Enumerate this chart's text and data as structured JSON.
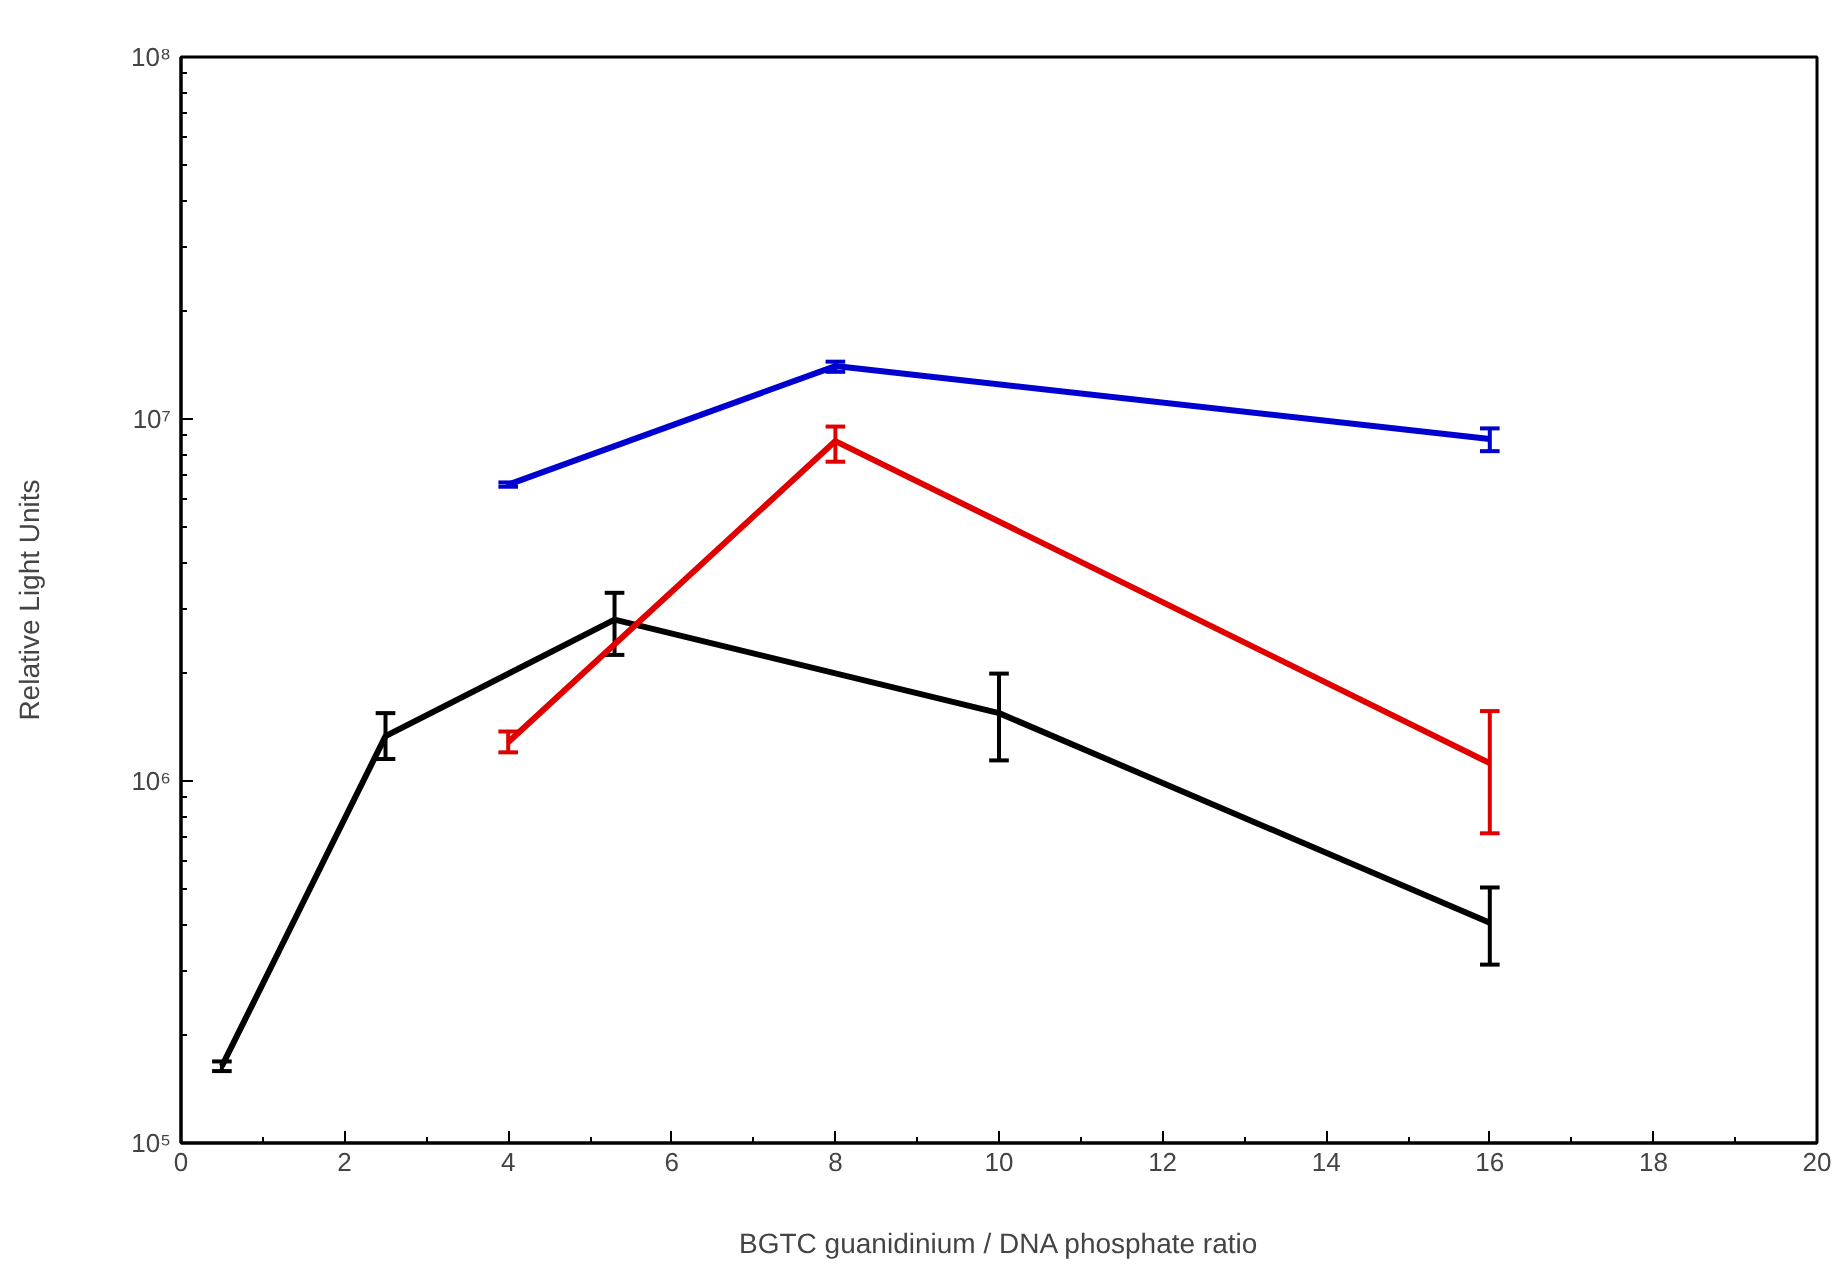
{
  "chart_data": {
    "type": "line",
    "xlabel": "BGTC guanidinium / DNA phosphate ratio",
    "ylabel": "Relative Light Units",
    "log": "y",
    "xlim": [
      0,
      20
    ],
    "xticks": [
      0,
      2,
      4,
      6,
      8,
      10,
      12,
      14,
      16,
      18,
      20
    ],
    "ylim": [
      100000,
      100000000
    ],
    "yticks": [
      {
        "value": 100000,
        "label": "10⁵"
      },
      {
        "value": 1000000,
        "label": "10⁶"
      },
      {
        "value": 10000000,
        "label": "10⁷"
      },
      {
        "value": 100000000,
        "label": "10⁸"
      }
    ],
    "series": [
      {
        "color": "#000000",
        "x": [
          0.5,
          2.5,
          5.3,
          10,
          16
        ],
        "values": [
          163000,
          1330000,
          2790000,
          1540000,
          406000
        ],
        "errors": [
          [
            158000,
            168000
          ],
          [
            1150000,
            1540000
          ],
          [
            2230000,
            3310000
          ],
          [
            1140000,
            1980000
          ],
          [
            311000,
            508000
          ]
        ]
      },
      {
        "color": "#e00000",
        "x": [
          4,
          8,
          16
        ],
        "values": [
          1280000,
          8690000,
          1120000
        ],
        "errors": [
          [
            1200000,
            1370000
          ],
          [
            7620000,
            9530000
          ],
          [
            717000,
            1560000
          ]
        ]
      },
      {
        "color": "#0000d0",
        "x": [
          4,
          8,
          16
        ],
        "values": [
          6590000,
          14000000,
          8810000
        ],
        "errors": [
          [
            6500000,
            6680000
          ],
          [
            13500000,
            14400000
          ],
          [
            8150000,
            9420000
          ]
        ]
      }
    ]
  }
}
